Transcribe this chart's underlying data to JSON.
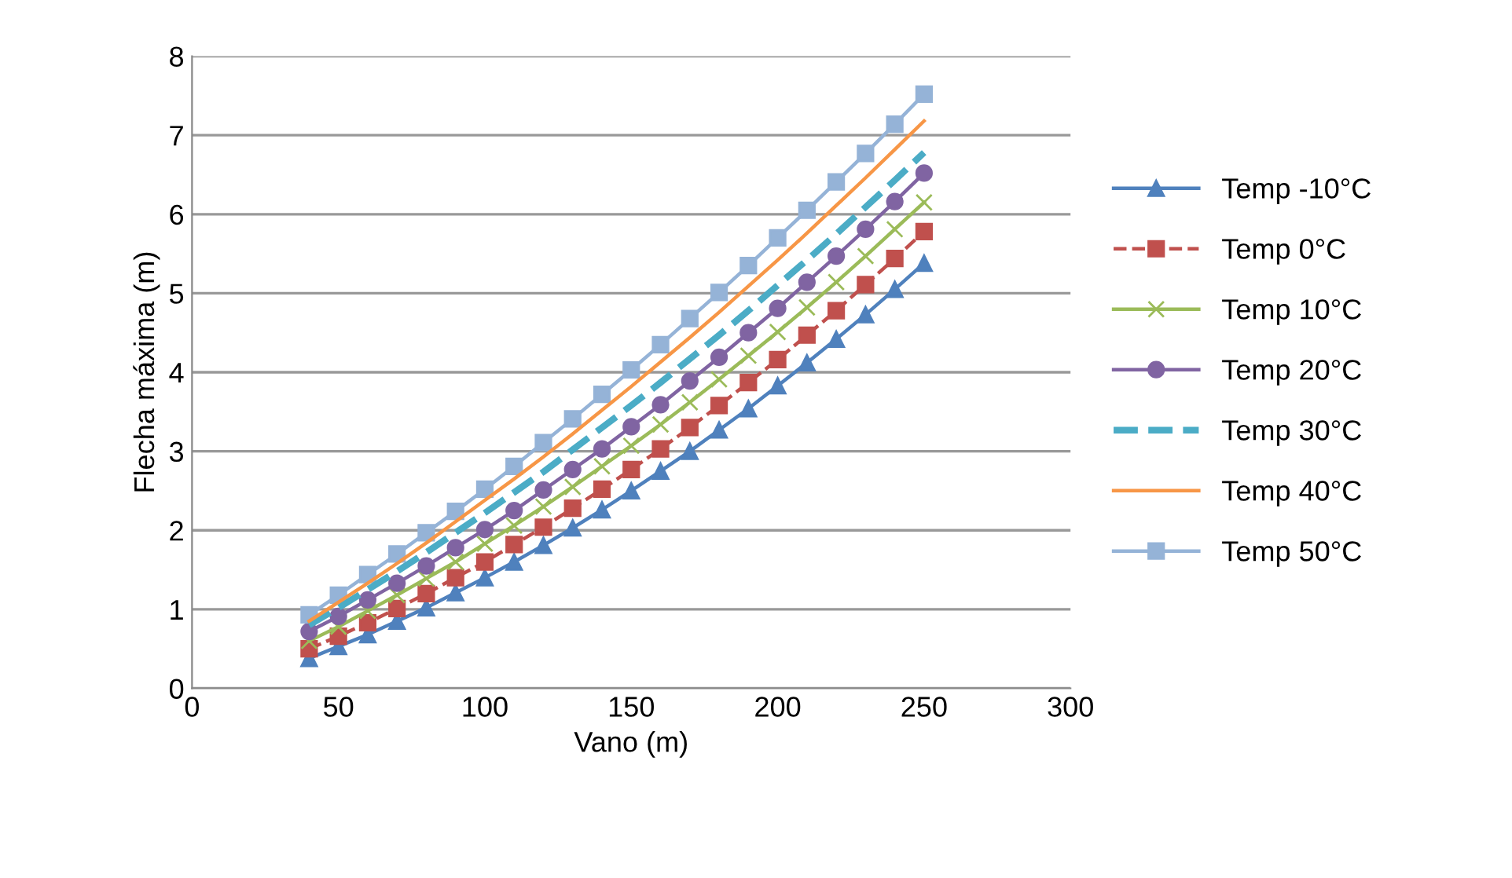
{
  "chart_data": {
    "type": "line",
    "xlabel": "Vano (m)",
    "ylabel": "Flecha máxima (m)",
    "x": [
      40,
      50,
      60,
      70,
      80,
      90,
      100,
      110,
      120,
      130,
      140,
      150,
      160,
      170,
      180,
      190,
      200,
      210,
      220,
      230,
      240,
      250
    ],
    "xlim": [
      0,
      300
    ],
    "xticks": [
      0,
      50,
      100,
      150,
      200,
      250,
      300
    ],
    "ylim": [
      0,
      8
    ],
    "yticks": [
      0,
      1,
      2,
      3,
      4,
      5,
      6,
      7,
      8
    ],
    "grid": "y",
    "legend": "right",
    "series": [
      {
        "name": "Temp -10°C",
        "color": "#4f81bd",
        "marker": "triangle",
        "line_style": "solid",
        "values": [
          0.38,
          0.53,
          0.68,
          0.85,
          1.02,
          1.21,
          1.4,
          1.6,
          1.81,
          2.03,
          2.26,
          2.5,
          2.75,
          3.0,
          3.27,
          3.54,
          3.83,
          4.12,
          4.42,
          4.73,
          5.05,
          5.38
        ]
      },
      {
        "name": "Temp 0°C",
        "color": "#c0504d",
        "marker": "square",
        "line_style": "dashed",
        "values": [
          0.5,
          0.66,
          0.83,
          1.01,
          1.2,
          1.4,
          1.6,
          1.82,
          2.04,
          2.28,
          2.52,
          2.77,
          3.03,
          3.3,
          3.58,
          3.87,
          4.16,
          4.47,
          4.78,
          5.11,
          5.44,
          5.78
        ]
      },
      {
        "name": "Temp 10°C",
        "color": "#9bbb59",
        "marker": "cross",
        "line_style": "solid",
        "values": [
          0.6,
          0.78,
          0.98,
          1.18,
          1.39,
          1.6,
          1.83,
          2.06,
          2.3,
          2.55,
          2.81,
          3.07,
          3.34,
          3.62,
          3.91,
          4.21,
          4.51,
          4.82,
          5.14,
          5.47,
          5.81,
          6.15
        ]
      },
      {
        "name": "Temp 20°C",
        "color": "#8064a2",
        "marker": "circle",
        "line_style": "solid",
        "values": [
          0.72,
          0.91,
          1.12,
          1.33,
          1.55,
          1.78,
          2.01,
          2.25,
          2.51,
          2.77,
          3.03,
          3.31,
          3.59,
          3.89,
          4.19,
          4.5,
          4.81,
          5.14,
          5.47,
          5.81,
          6.16,
          6.52
        ]
      },
      {
        "name": "Temp 30°C",
        "color": "#4bacc6",
        "marker": "none",
        "line_style": "dashed",
        "values": [
          0.8,
          1.02,
          1.25,
          1.48,
          1.72,
          1.97,
          2.22,
          2.48,
          2.74,
          3.02,
          3.3,
          3.58,
          3.87,
          4.17,
          4.47,
          4.78,
          5.1,
          5.42,
          5.75,
          6.09,
          6.43,
          6.78
        ]
      },
      {
        "name": "Temp 40°C",
        "color": "#f79646",
        "marker": "none",
        "line_style": "solid",
        "values": [
          0.85,
          1.09,
          1.33,
          1.58,
          1.84,
          2.11,
          2.38,
          2.65,
          2.93,
          3.22,
          3.52,
          3.82,
          4.13,
          4.44,
          4.76,
          5.09,
          5.42,
          5.76,
          6.11,
          6.46,
          6.82,
          7.18
        ]
      },
      {
        "name": "Temp 50°C",
        "color": "#95b3d7",
        "marker": "square",
        "line_style": "solid",
        "values": [
          0.93,
          1.18,
          1.44,
          1.7,
          1.97,
          2.24,
          2.52,
          2.81,
          3.11,
          3.41,
          3.72,
          4.03,
          4.35,
          4.68,
          5.01,
          5.35,
          5.7,
          6.05,
          6.41,
          6.77,
          7.14,
          7.52
        ]
      }
    ]
  }
}
